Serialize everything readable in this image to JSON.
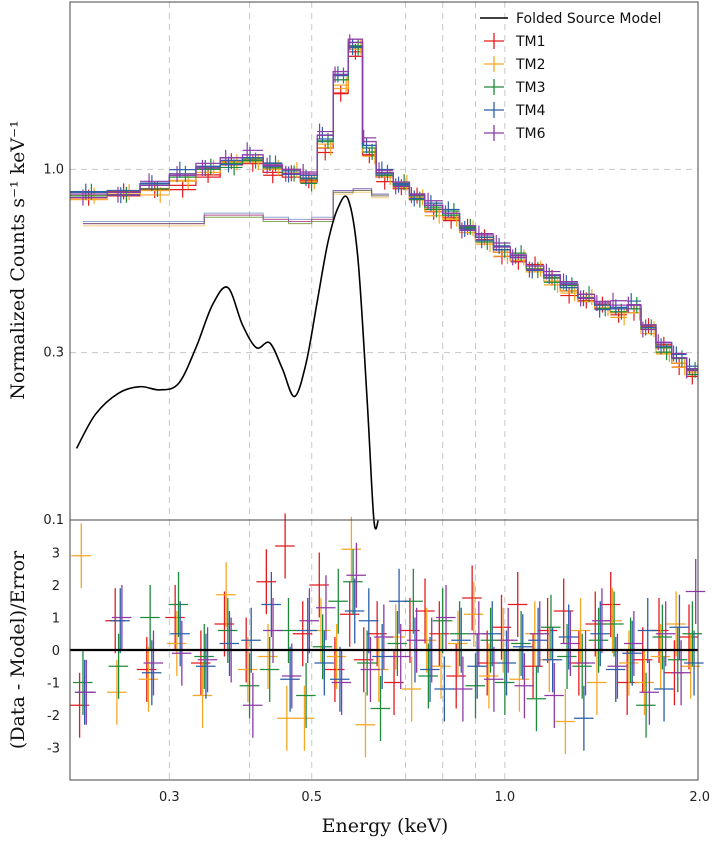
{
  "chart_data": [
    {
      "type": "line",
      "panel": "top",
      "ylabel": "Normalized Counts s⁻¹ keV⁻¹",
      "yscale": "log",
      "xscale": "log",
      "xlim": [
        0.21,
        2.0
      ],
      "ylim": [
        0.1,
        3.0
      ],
      "yticks": [
        {
          "v": 0.1,
          "label": "0.1"
        },
        {
          "v": 0.3,
          "label": "0.3"
        },
        {
          "v": 1.0,
          "label": "1.0"
        }
      ],
      "grid": true,
      "legend_position": "top-right",
      "legend": [
        "Folded Source Model",
        "TM1",
        "TM2",
        "TM3",
        "TM4",
        "TM6"
      ],
      "colors": {
        "TM1": "#e41a1c",
        "TM2": "#f5a623",
        "TM3": "#1f8a3a",
        "TM4": "#2b5fa8",
        "TM6": "#8e3aa6",
        "model": "#000000"
      },
      "model_curve": {
        "name": "Folded Source Model",
        "x": [
          0.215,
          0.23,
          0.25,
          0.27,
          0.29,
          0.31,
          0.33,
          0.35,
          0.37,
          0.39,
          0.41,
          0.43,
          0.45,
          0.47,
          0.49,
          0.51,
          0.53,
          0.55,
          0.57,
          0.59,
          0.61,
          0.625,
          0.635
        ],
        "y": [
          0.16,
          0.2,
          0.23,
          0.24,
          0.235,
          0.245,
          0.31,
          0.41,
          0.46,
          0.36,
          0.31,
          0.32,
          0.27,
          0.225,
          0.28,
          0.42,
          0.62,
          0.78,
          0.82,
          0.56,
          0.22,
          0.1,
          0.1
        ]
      },
      "series_model_x": [
        0.21,
        0.24,
        0.27,
        0.3,
        0.33,
        0.36,
        0.39,
        0.42,
        0.45,
        0.48,
        0.51,
        0.54,
        0.57,
        0.6,
        0.63,
        0.67,
        0.71,
        0.75,
        0.8,
        0.85,
        0.9,
        0.96,
        1.02,
        1.08,
        1.15,
        1.22,
        1.3,
        1.38,
        1.46,
        1.55,
        1.63,
        1.72,
        1.82,
        1.92,
        2.0
      ],
      "series": [
        {
          "name": "TM1",
          "y": [
            0.83,
            0.84,
            0.88,
            0.9,
            0.95,
            1.03,
            1.06,
            0.98,
            0.95,
            0.92,
            1.15,
            1.65,
            2.1,
            1.1,
            0.95,
            0.88,
            0.82,
            0.77,
            0.73,
            0.67,
            0.63,
            0.58,
            0.55,
            0.52,
            0.49,
            0.45,
            0.42,
            0.4,
            0.39,
            0.4,
            0.35,
            0.31,
            0.28,
            0.26,
            0.25
          ],
          "offset": 0.0
        },
        {
          "name": "TM2",
          "y": [
            0.82,
            0.85,
            0.87,
            0.93,
            0.98,
            1.05,
            1.08,
            1.0,
            0.97,
            0.94,
            1.18,
            1.7,
            2.2,
            1.12,
            0.96,
            0.89,
            0.83,
            0.76,
            0.72,
            0.66,
            0.62,
            0.58,
            0.55,
            0.51,
            0.48,
            0.45,
            0.42,
            0.4,
            0.39,
            0.39,
            0.34,
            0.3,
            0.28,
            0.26,
            0.24
          ],
          "offset": 0.02
        },
        {
          "name": "TM3",
          "y": [
            0.84,
            0.86,
            0.9,
            0.95,
            1.0,
            1.04,
            1.07,
            1.01,
            0.97,
            0.94,
            1.2,
            1.8,
            2.25,
            1.15,
            0.96,
            0.9,
            0.84,
            0.78,
            0.74,
            0.68,
            0.64,
            0.59,
            0.56,
            0.52,
            0.49,
            0.46,
            0.43,
            0.41,
            0.4,
            0.4,
            0.35,
            0.31,
            0.29,
            0.26,
            0.25
          ],
          "offset": 0.01
        },
        {
          "name": "TM4",
          "y": [
            0.86,
            0.87,
            0.91,
            0.97,
            1.02,
            1.06,
            1.08,
            1.02,
            0.99,
            0.96,
            1.22,
            1.85,
            2.3,
            1.17,
            0.97,
            0.91,
            0.85,
            0.79,
            0.75,
            0.69,
            0.64,
            0.59,
            0.56,
            0.53,
            0.5,
            0.46,
            0.43,
            0.41,
            0.4,
            0.41,
            0.36,
            0.32,
            0.29,
            0.27,
            0.25
          ],
          "offset": -0.01
        },
        {
          "name": "TM6",
          "y": [
            0.85,
            0.86,
            0.9,
            0.96,
            1.04,
            1.08,
            1.1,
            1.03,
            1.0,
            0.97,
            1.25,
            1.9,
            2.35,
            1.2,
            0.98,
            0.92,
            0.85,
            0.79,
            0.75,
            0.69,
            0.65,
            0.6,
            0.57,
            0.53,
            0.5,
            0.47,
            0.44,
            0.42,
            0.41,
            0.41,
            0.36,
            0.32,
            0.29,
            0.27,
            0.25
          ],
          "offset": -0.02
        }
      ],
      "series_lower_x": [
        0.22,
        0.26,
        0.3,
        0.34,
        0.38,
        0.42,
        0.46,
        0.5,
        0.54,
        0.58,
        0.62,
        0.66
      ],
      "series_lower": [
        {
          "name": "TM1",
          "y": [
            0.7,
            0.7,
            0.7,
            0.74,
            0.74,
            0.72,
            0.71,
            0.72,
            0.86,
            0.87,
            0.84,
            0.83
          ]
        },
        {
          "name": "TM2",
          "y": [
            0.69,
            0.69,
            0.69,
            0.73,
            0.73,
            0.71,
            0.7,
            0.71,
            0.85,
            0.86,
            0.83,
            0.82
          ]
        },
        {
          "name": "TM3",
          "y": [
            0.7,
            0.7,
            0.7,
            0.73,
            0.73,
            0.71,
            0.7,
            0.71,
            0.86,
            0.87,
            0.84,
            0.83
          ]
        },
        {
          "name": "TM4",
          "y": [
            0.71,
            0.71,
            0.71,
            0.75,
            0.75,
            0.73,
            0.72,
            0.73,
            0.87,
            0.88,
            0.85,
            0.84
          ]
        },
        {
          "name": "TM6",
          "y": [
            0.7,
            0.7,
            0.7,
            0.74,
            0.74,
            0.72,
            0.71,
            0.72,
            0.87,
            0.88,
            0.85,
            0.84
          ]
        }
      ]
    },
    {
      "type": "scatter",
      "panel": "bottom",
      "xlabel": "Energy (keV)",
      "ylabel": "(Data - Model)/Error",
      "xscale": "log",
      "xlim": [
        0.21,
        2.0
      ],
      "ylim": [
        -4.0,
        4.0
      ],
      "xticks": [
        {
          "v": 0.3,
          "label": "0.3"
        },
        {
          "v": 0.5,
          "label": "0.5"
        },
        {
          "v": 1.0,
          "label": "1.0"
        },
        {
          "v": 2.0,
          "label": "2.0"
        }
      ],
      "yticks": [
        {
          "v": -3,
          "label": "-3"
        },
        {
          "v": -2,
          "label": "-2"
        },
        {
          "v": -1,
          "label": "-1"
        },
        {
          "v": 0,
          "label": "0"
        },
        {
          "v": 1,
          "label": "1"
        },
        {
          "v": 2,
          "label": "2"
        },
        {
          "v": 3,
          "label": "3"
        }
      ],
      "zero_line": true,
      "grid": true,
      "residual_x": [
        0.22,
        0.25,
        0.28,
        0.31,
        0.34,
        0.37,
        0.4,
        0.43,
        0.46,
        0.49,
        0.52,
        0.55,
        0.58,
        0.61,
        0.64,
        0.68,
        0.72,
        0.76,
        0.8,
        0.85,
        0.9,
        0.95,
        1.0,
        1.06,
        1.12,
        1.18,
        1.25,
        1.32,
        1.4,
        1.48,
        1.57,
        1.66,
        1.76,
        1.86,
        1.96
      ],
      "residuals": [
        {
          "name": "TM1",
          "y": [
            -1.7,
            0.9,
            -0.6,
            1.0,
            -0.4,
            0.8,
            0.0,
            2.1,
            3.2,
            0.5,
            2.0,
            -0.6,
            1.1,
            -0.3,
            0.5,
            -1.0,
            0.6,
            1.2,
            0.5,
            -0.8,
            1.6,
            -0.4,
            0.7,
            1.4,
            -0.5,
            0.6,
            1.2,
            -0.4,
            0.8,
            1.4,
            -1.0,
            -0.3,
            0.6,
            -0.7,
            0.4
          ]
        },
        {
          "name": "TM2",
          "y": [
            2.9,
            -1.3,
            -0.9,
            0.2,
            -1.4,
            1.7,
            -0.6,
            -0.2,
            -2.1,
            -2.1,
            0.6,
            -0.2,
            3.1,
            -2.3,
            -0.6,
            0.4,
            -1.2,
            0.3,
            -0.5,
            0.2,
            1.1,
            -0.8,
            0.3,
            -0.9,
            0.5,
            -0.3,
            -2.2,
            0.6,
            -1.0,
            0.9,
            -0.4,
            -1.0,
            -0.2,
            0.8,
            -0.5
          ]
        },
        {
          "name": "TM3",
          "y": [
            -1.0,
            -0.5,
            1.0,
            1.4,
            -0.2,
            0.6,
            -1.1,
            -0.6,
            0.6,
            -1.4,
            0.1,
            1.5,
            2.1,
            -0.4,
            -1.8,
            0.2,
            1.5,
            -0.8,
            0.9,
            0.5,
            -1.1,
            0.3,
            -1.0,
            0.2,
            -1.5,
            0.7,
            -0.2,
            -0.5,
            0.3,
            0.8,
            0.0,
            -1.7,
            0.4,
            -0.3,
            0.5
          ]
        },
        {
          "name": "TM4",
          "y": [
            -1.3,
            0.9,
            -0.7,
            0.5,
            -0.5,
            0.2,
            0.3,
            1.4,
            -0.9,
            0.6,
            -0.4,
            -0.9,
            1.2,
            0.9,
            -0.2,
            1.5,
            0.0,
            -0.6,
            -1.2,
            0.3,
            -0.5,
            0.5,
            -0.4,
            0.1,
            0.3,
            -0.3,
            0.4,
            -2.1,
            0.5,
            -0.6,
            -0.1,
            0.6,
            -1.2,
            0.7,
            -0.4
          ]
        },
        {
          "name": "TM6",
          "y": [
            -1.3,
            1.0,
            -0.4,
            -0.1,
            -0.3,
            0.0,
            -1.7,
            0.6,
            -0.8,
            0.9,
            1.3,
            -1.0,
            2.3,
            -0.6,
            0.4,
            -0.2,
            0.3,
            0.0,
            1.0,
            -1.2,
            0.5,
            -0.9,
            0.3,
            -1.1,
            0.5,
            -1.4,
            0.2,
            -0.4,
            0.9,
            -0.5,
            0.2,
            -1.3,
            0.5,
            -0.7,
            1.8
          ]
        }
      ]
    }
  ]
}
